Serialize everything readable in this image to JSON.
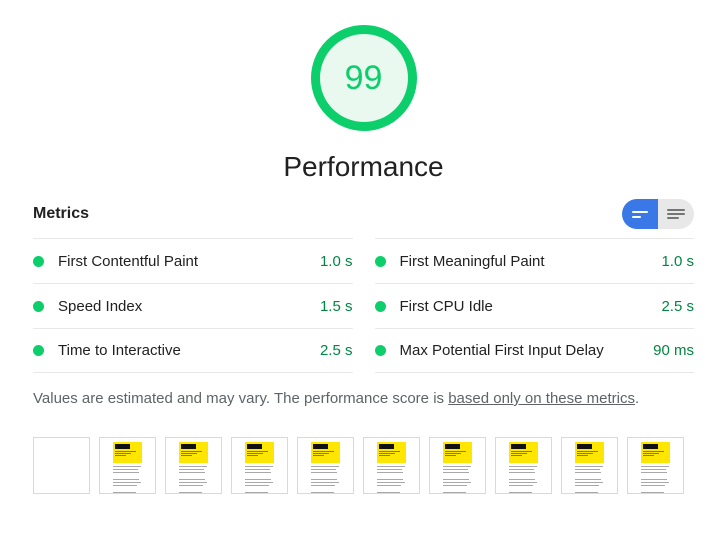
{
  "score": {
    "value": "99",
    "category_label": "Performance"
  },
  "metrics_section": {
    "title": "Metrics",
    "toggle": {
      "condensed_icon": "condensed-view-icon",
      "expanded_icon": "expanded-view-icon",
      "selected": "condensed"
    },
    "items": [
      {
        "label": "First Contentful Paint",
        "value": "1.0 s",
        "status": "pass"
      },
      {
        "label": "Speed Index",
        "value": "1.5 s",
        "status": "pass"
      },
      {
        "label": "Time to Interactive",
        "value": "2.5 s",
        "status": "pass"
      },
      {
        "label": "First Meaningful Paint",
        "value": "1.0 s",
        "status": "pass"
      },
      {
        "label": "First CPU Idle",
        "value": "2.5 s",
        "status": "pass"
      },
      {
        "label": "Max Potential First Input Delay",
        "value": "90 ms",
        "status": "pass"
      }
    ]
  },
  "note": {
    "text_before_link": "Values are estimated and may vary. The performance score is ",
    "link_text": "based only on these metrics",
    "text_after_link": "."
  },
  "filmstrip": {
    "frames": [
      "blank",
      "page",
      "page",
      "page",
      "page",
      "page",
      "page",
      "page",
      "page",
      "page"
    ]
  },
  "colors": {
    "score_green": "#0cce6b",
    "score_fill": "#e9f9f0",
    "value_green": "#018642",
    "toggle_blue": "#3b78e7",
    "thumbnail_yellow": "#ffe600"
  }
}
